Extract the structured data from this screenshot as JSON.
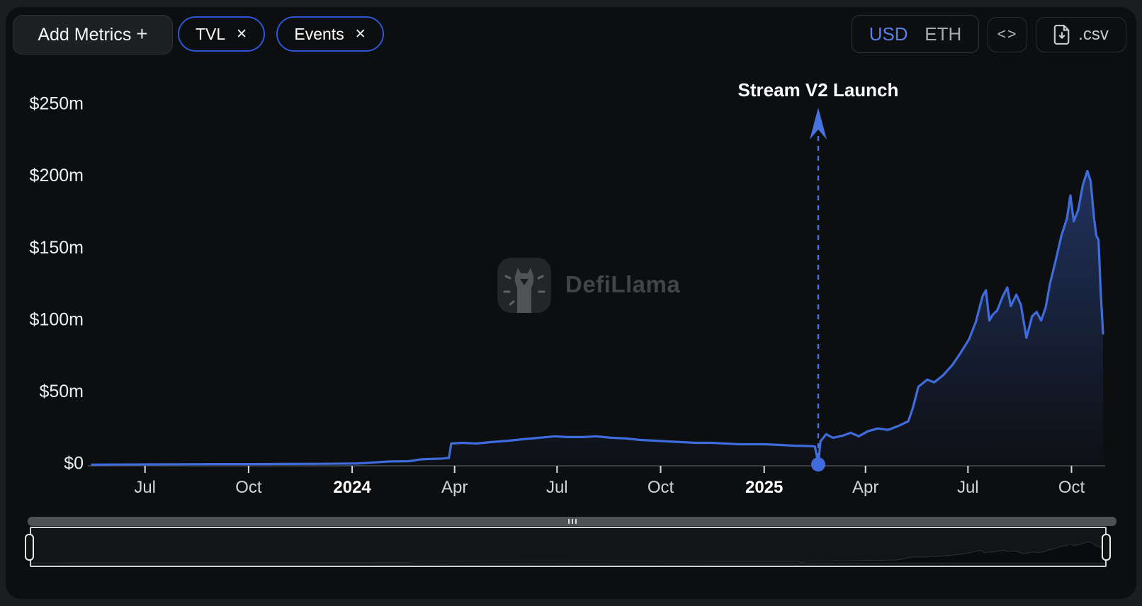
{
  "header": {
    "add_metrics_label": "Add Metrics",
    "metric_pills": [
      {
        "label": "TVL"
      },
      {
        "label": "Events"
      }
    ],
    "currency_toggle": {
      "options": [
        "USD",
        "ETH"
      ],
      "selected": "USD"
    },
    "csv_button_label": ".csv",
    "icons": {
      "plus": "+",
      "close": "✕",
      "code": "<>",
      "csv": "file-download-icon",
      "grip": "drag-grip-icon"
    }
  },
  "watermark": {
    "label": "DefiLlama"
  },
  "colors": {
    "page_background": "#1c1d1f",
    "card_background": "#0d0e10",
    "line_blue": "#3f6cdd",
    "pill_border": "#2d57d6",
    "usd_selected_blue": "#5a80e8",
    "axis_text": "#eef0f2"
  },
  "chart_data": {
    "type": "area",
    "title": "",
    "xlabel": "",
    "ylabel": "",
    "unit": "$m",
    "grid": false,
    "legend": null,
    "ylim": [
      0,
      250
    ],
    "xlim": [
      "2023-05-15",
      "2025-10-29"
    ],
    "y_ticks": [
      {
        "label": "$0",
        "value": 0
      },
      {
        "label": "$50m",
        "value": 50
      },
      {
        "label": "$100m",
        "value": 100
      },
      {
        "label": "$150m",
        "value": 150
      },
      {
        "label": "$200m",
        "value": 200
      },
      {
        "label": "$250m",
        "value": 250
      }
    ],
    "x_ticks": [
      {
        "label": "Jul",
        "date": "2023-07-01",
        "bold": false
      },
      {
        "label": "Oct",
        "date": "2023-10-01",
        "bold": false
      },
      {
        "label": "2024",
        "date": "2024-01-01",
        "bold": true
      },
      {
        "label": "Apr",
        "date": "2024-04-01",
        "bold": false
      },
      {
        "label": "Jul",
        "date": "2024-07-01",
        "bold": false
      },
      {
        "label": "Oct",
        "date": "2024-10-01",
        "bold": false
      },
      {
        "label": "2025",
        "date": "2025-01-01",
        "bold": true
      },
      {
        "label": "Apr",
        "date": "2025-04-01",
        "bold": false
      },
      {
        "label": "Jul",
        "date": "2025-07-01",
        "bold": false
      },
      {
        "label": "Oct",
        "date": "2025-10-01",
        "bold": false
      }
    ],
    "events": [
      {
        "label": "Stream V2 Launch",
        "date": "2025-02-18",
        "value": 0
      }
    ],
    "series": [
      {
        "name": "TVL",
        "color": "#3f6cdd",
        "points": [
          [
            "2023-05-15",
            0.8
          ],
          [
            "2023-06-01",
            0.9
          ],
          [
            "2023-07-01",
            1.0
          ],
          [
            "2023-08-01",
            1.1
          ],
          [
            "2023-09-01",
            1.2
          ],
          [
            "2023-10-01",
            1.2
          ],
          [
            "2023-11-01",
            1.3
          ],
          [
            "2023-12-01",
            1.4
          ],
          [
            "2024-01-05",
            1.6
          ],
          [
            "2024-02-03",
            3.0
          ],
          [
            "2024-02-20",
            3.2
          ],
          [
            "2024-03-02",
            4.5
          ],
          [
            "2024-03-20",
            5.0
          ],
          [
            "2024-03-27",
            5.5
          ],
          [
            "2024-03-29",
            15.5
          ],
          [
            "2024-04-08",
            16.0
          ],
          [
            "2024-04-20",
            15.5
          ],
          [
            "2024-05-03",
            16.5
          ],
          [
            "2024-05-20",
            17.5
          ],
          [
            "2024-06-01",
            18.5
          ],
          [
            "2024-06-15",
            19.5
          ],
          [
            "2024-06-29",
            20.5
          ],
          [
            "2024-07-10",
            20.0
          ],
          [
            "2024-07-24",
            20.0
          ],
          [
            "2024-08-05",
            20.5
          ],
          [
            "2024-08-18",
            19.5
          ],
          [
            "2024-09-01",
            19.0
          ],
          [
            "2024-09-12",
            18.0
          ],
          [
            "2024-09-25",
            17.5
          ],
          [
            "2024-10-07",
            17.0
          ],
          [
            "2024-10-20",
            16.5
          ],
          [
            "2024-11-01",
            16.0
          ],
          [
            "2024-11-15",
            16.0
          ],
          [
            "2024-11-26",
            15.5
          ],
          [
            "2024-12-10",
            15.0
          ],
          [
            "2025-01-01",
            15.0
          ],
          [
            "2025-01-15",
            14.5
          ],
          [
            "2025-01-28",
            14.0
          ],
          [
            "2025-02-10",
            13.8
          ],
          [
            "2025-02-15",
            13.5
          ],
          [
            "2025-02-17",
            6.0
          ],
          [
            "2025-02-18",
            0.5
          ],
          [
            "2025-02-20",
            17.0
          ],
          [
            "2025-02-25",
            22.0
          ],
          [
            "2025-03-03",
            19.5
          ],
          [
            "2025-03-12",
            21.0
          ],
          [
            "2025-03-19",
            23.0
          ],
          [
            "2025-03-26",
            20.5
          ],
          [
            "2025-04-03",
            24.0
          ],
          [
            "2025-04-12",
            26.0
          ],
          [
            "2025-04-21",
            25.0
          ],
          [
            "2025-05-01",
            28.0
          ],
          [
            "2025-05-09",
            31.0
          ],
          [
            "2025-05-13",
            40.0
          ],
          [
            "2025-05-18",
            55.0
          ],
          [
            "2025-05-26",
            60.0
          ],
          [
            "2025-06-01",
            58.0
          ],
          [
            "2025-06-09",
            63.0
          ],
          [
            "2025-06-17",
            70.0
          ],
          [
            "2025-06-24",
            78.0
          ],
          [
            "2025-07-02",
            88.0
          ],
          [
            "2025-07-08",
            100.0
          ],
          [
            "2025-07-14",
            118.0
          ],
          [
            "2025-07-17",
            122.0
          ],
          [
            "2025-07-20",
            101.0
          ],
          [
            "2025-07-23",
            105.0
          ],
          [
            "2025-07-27",
            108.0
          ],
          [
            "2025-08-01",
            118.0
          ],
          [
            "2025-08-05",
            124.0
          ],
          [
            "2025-08-08",
            111.0
          ],
          [
            "2025-08-13",
            119.0
          ],
          [
            "2025-08-17",
            112.0
          ],
          [
            "2025-08-22",
            89.0
          ],
          [
            "2025-08-27",
            104.0
          ],
          [
            "2025-08-31",
            107.0
          ],
          [
            "2025-09-04",
            101.0
          ],
          [
            "2025-09-08",
            110.0
          ],
          [
            "2025-09-12",
            127.0
          ],
          [
            "2025-09-17",
            143.0
          ],
          [
            "2025-09-22",
            160.0
          ],
          [
            "2025-09-27",
            172.0
          ],
          [
            "2025-09-30",
            188.0
          ],
          [
            "2025-10-03",
            170.0
          ],
          [
            "2025-10-07",
            178.0
          ],
          [
            "2025-10-11",
            195.0
          ],
          [
            "2025-10-15",
            205.0
          ],
          [
            "2025-10-18",
            198.0
          ],
          [
            "2025-10-21",
            172.0
          ],
          [
            "2025-10-23",
            160.0
          ],
          [
            "2025-10-25",
            157.0
          ],
          [
            "2025-10-27",
            120.0
          ],
          [
            "2025-10-29",
            92.0
          ]
        ]
      }
    ]
  }
}
